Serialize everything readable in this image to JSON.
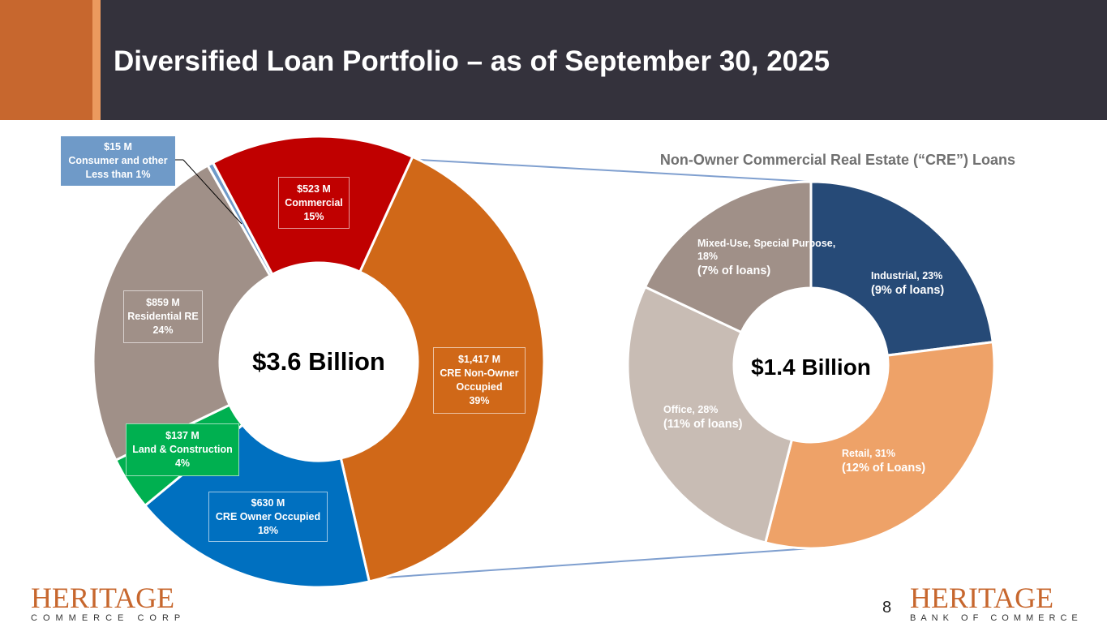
{
  "header": {
    "title": "Diversified Loan Portfolio – as of September 30, 2025"
  },
  "chart_data": [
    {
      "type": "pie",
      "donut": true,
      "center_label": "$3.6 Billion",
      "slices": [
        {
          "name": "CRE Non-Owner Occupied",
          "value": 1417,
          "amount_label": "$1,417 M",
          "label": "CRE Non-Owner",
          "label2": "Occupied",
          "pct_label": "39%",
          "color": "#d06818"
        },
        {
          "name": "CRE Owner Occupied",
          "value": 630,
          "amount_label": "$630 M",
          "label": "CRE Owner Occupied",
          "pct_label": "18%",
          "color": "#0070c0"
        },
        {
          "name": "Land & Construction",
          "value": 137,
          "amount_label": "$137 M",
          "label": "Land & Construction",
          "pct_label": "4%",
          "color": "#00b050"
        },
        {
          "name": "Residential RE",
          "value": 859,
          "amount_label": "$859 M",
          "label": "Residential RE",
          "pct_label": "24%",
          "color": "#a09088"
        },
        {
          "name": "Consumer and other",
          "value": 15,
          "amount_label": "$15 M",
          "label": "Consumer and other",
          "pct_label": "Less than 1%",
          "color": "#6f9ac8"
        },
        {
          "name": "Commercial",
          "value": 523,
          "amount_label": "$523 M",
          "label": "Commercial",
          "pct_label": "15%",
          "color": "#c00000"
        }
      ]
    },
    {
      "type": "pie",
      "donut": true,
      "title": "Non-Owner Commercial Real Estate (“CRE”) Loans",
      "center_label": "$1.4 Billion",
      "slices": [
        {
          "name": "Industrial",
          "value": 23,
          "label": "Industrial, 23%",
          "sub": "(9% of loans)",
          "color": "#264a77"
        },
        {
          "name": "Retail",
          "value": 31,
          "label": "Retail, 31%",
          "sub": "(12% of Loans)",
          "color": "#eea268"
        },
        {
          "name": "Office",
          "value": 28,
          "label": "Office, 28%",
          "sub": "(11% of loans)",
          "color": "#c8bcb4"
        },
        {
          "name": "Mixed-Use, Special Purpose",
          "value": 18,
          "label": "Mixed-Use, Special Purpose,",
          "label2": "18%",
          "sub": "(7% of loans)",
          "color": "#a09088"
        }
      ]
    }
  ],
  "footer": {
    "left_logo": {
      "main": "HERITAGE",
      "sub": "COMMERCE CORP"
    },
    "right_logo": {
      "main": "HERITAGE",
      "sub": "BANK OF COMMERCE"
    },
    "page_number": "8"
  },
  "colors": {
    "header_bg": "#34323c",
    "header_accent": "#c7672e",
    "connector": "#7f9fcf"
  }
}
